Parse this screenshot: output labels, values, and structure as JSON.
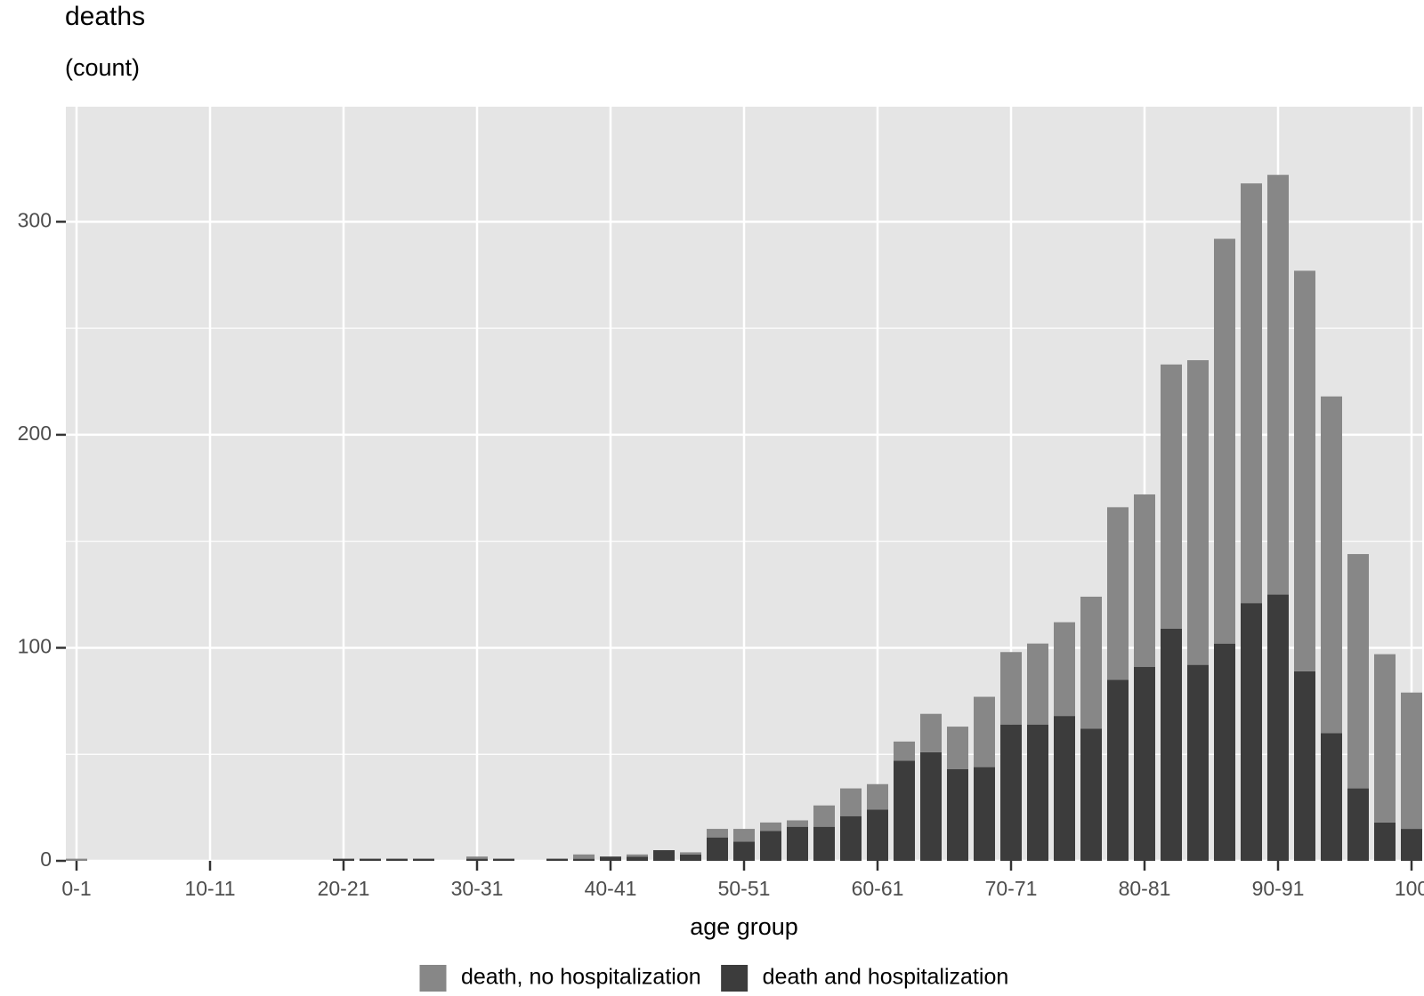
{
  "chart_data": {
    "type": "stacked_bar",
    "title": "deaths",
    "subtitle": "(count)",
    "x_label": "age group",
    "categories": [
      "0-1",
      null,
      null,
      null,
      null,
      "10-11",
      null,
      null,
      null,
      null,
      "20-21",
      null,
      null,
      null,
      null,
      "30-31",
      null,
      null,
      null,
      null,
      "40-41",
      null,
      null,
      null,
      null,
      "50-51",
      null,
      null,
      null,
      null,
      "60-61",
      null,
      null,
      null,
      null,
      "70-71",
      null,
      null,
      null,
      null,
      "80-81",
      null,
      null,
      null,
      null,
      "90-91",
      null,
      null,
      null,
      null,
      "100"
    ],
    "series": [
      {
        "name": "death, no hospitalization",
        "color": "#878787",
        "values": [
          1,
          0,
          0,
          0,
          0,
          0,
          0,
          0,
          0,
          0,
          0,
          0,
          0,
          0,
          0,
          1,
          0,
          0,
          0,
          2,
          0,
          1,
          0,
          1,
          4,
          6,
          4,
          3,
          10,
          13,
          12,
          9,
          18,
          20,
          33,
          34,
          38,
          44,
          62,
          81,
          81,
          124,
          143,
          190,
          197,
          197,
          188,
          158,
          110,
          79,
          64
        ]
      },
      {
        "name": "death and hospitalization",
        "color": "#3c3c3c",
        "values": [
          0,
          0,
          0,
          0,
          0,
          0,
          0,
          0,
          0,
          0,
          1,
          1,
          1,
          1,
          0,
          1,
          1,
          0,
          1,
          1,
          2,
          2,
          5,
          3,
          11,
          9,
          14,
          16,
          16,
          21,
          24,
          47,
          51,
          43,
          44,
          64,
          64,
          68,
          62,
          85,
          91,
          109,
          92,
          102,
          121,
          125,
          89,
          60,
          34,
          18,
          15
        ]
      }
    ],
    "stack_order": [
      1,
      0
    ],
    "ylim": [
      0,
      354
    ],
    "yticks": [
      0,
      100,
      200,
      300
    ],
    "minor_yticks": [
      50,
      150,
      250
    ],
    "grid": true,
    "legend": "bottom"
  }
}
